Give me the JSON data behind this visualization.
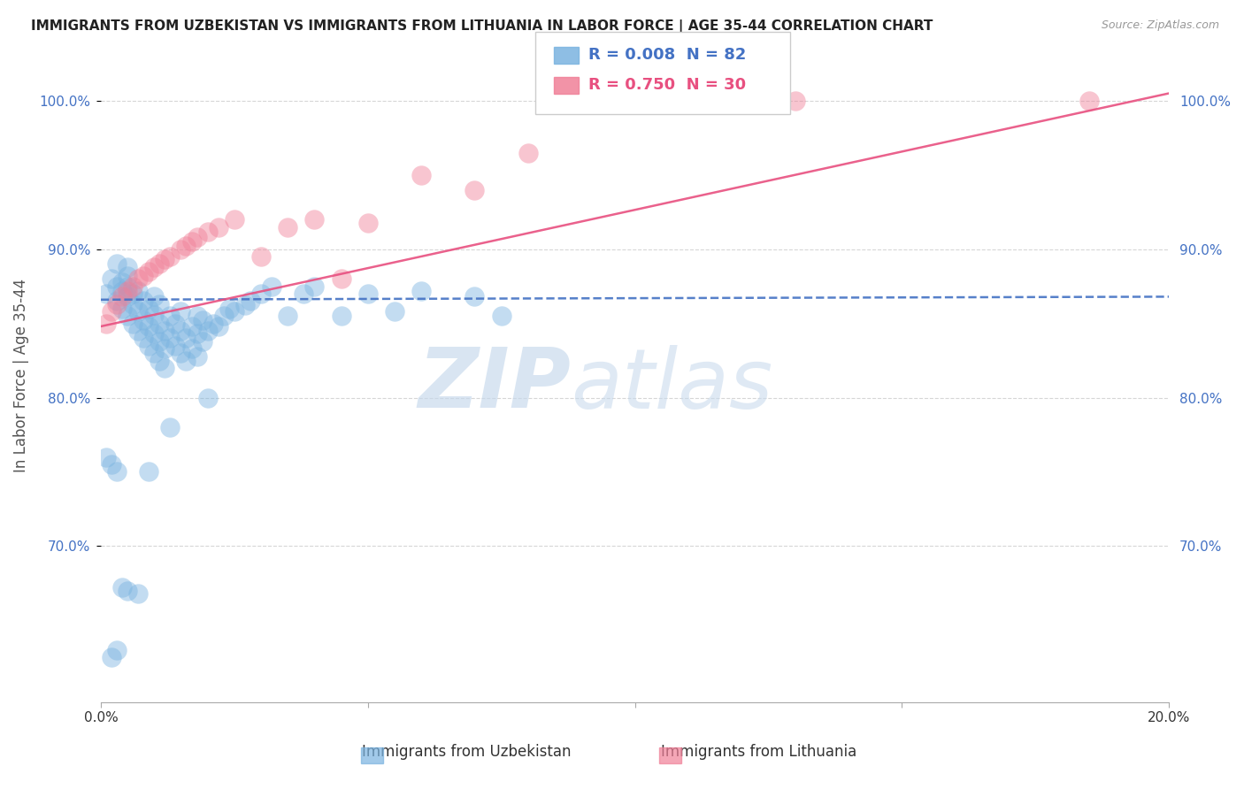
{
  "title": "IMMIGRANTS FROM UZBEKISTAN VS IMMIGRANTS FROM LITHUANIA IN LABOR FORCE | AGE 35-44 CORRELATION CHART",
  "source": "Source: ZipAtlas.com",
  "xlabel_bottom": [
    "Immigrants from Uzbekistan",
    "Immigrants from Lithuania"
  ],
  "ylabel": "In Labor Force | Age 35-44",
  "xlim": [
    0.0,
    0.2
  ],
  "ylim": [
    0.595,
    1.035
  ],
  "yticks": [
    0.7,
    0.8,
    0.9,
    1.0
  ],
  "ytick_labels": [
    "70.0%",
    "80.0%",
    "90.0%",
    "100.0%"
  ],
  "xticks": [
    0.0,
    0.05,
    0.1,
    0.15,
    0.2
  ],
  "xtick_labels": [
    "0.0%",
    "",
    "",
    "",
    "20.0%"
  ],
  "watermark_zip": "ZIP",
  "watermark_atlas": "atlas",
  "blue_color": "#7ab3e0",
  "pink_color": "#f08098",
  "blue_line_color": "#4472c4",
  "pink_line_color": "#e85080",
  "background": "#ffffff",
  "grid_color": "#cccccc",
  "title_fontsize": 11,
  "axis_label_color": "#555555",
  "tick_color": "#4472c4",
  "blue_line_y0": 0.866,
  "blue_line_y1": 0.868,
  "pink_line_y0": 0.848,
  "pink_line_y1": 1.005,
  "uz_x": [
    0.001,
    0.002,
    0.003,
    0.003,
    0.003,
    0.004,
    0.004,
    0.004,
    0.005,
    0.005,
    0.005,
    0.005,
    0.005,
    0.006,
    0.006,
    0.006,
    0.007,
    0.007,
    0.007,
    0.008,
    0.008,
    0.008,
    0.009,
    0.009,
    0.009,
    0.01,
    0.01,
    0.01,
    0.01,
    0.011,
    0.011,
    0.011,
    0.011,
    0.012,
    0.012,
    0.012,
    0.013,
    0.013,
    0.014,
    0.014,
    0.015,
    0.015,
    0.015,
    0.016,
    0.016,
    0.017,
    0.017,
    0.018,
    0.018,
    0.018,
    0.019,
    0.019,
    0.02,
    0.021,
    0.022,
    0.023,
    0.024,
    0.025,
    0.027,
    0.028,
    0.03,
    0.032,
    0.035,
    0.038,
    0.04,
    0.045,
    0.05,
    0.055,
    0.06,
    0.07,
    0.075,
    0.001,
    0.002,
    0.003,
    0.004,
    0.005,
    0.007,
    0.009,
    0.013,
    0.02,
    0.002,
    0.003
  ],
  "uz_y": [
    0.87,
    0.88,
    0.865,
    0.875,
    0.89,
    0.86,
    0.872,
    0.878,
    0.855,
    0.868,
    0.875,
    0.882,
    0.888,
    0.85,
    0.863,
    0.87,
    0.845,
    0.858,
    0.872,
    0.84,
    0.852,
    0.865,
    0.835,
    0.848,
    0.86,
    0.83,
    0.843,
    0.856,
    0.868,
    0.825,
    0.838,
    0.85,
    0.863,
    0.82,
    0.833,
    0.845,
    0.84,
    0.855,
    0.835,
    0.85,
    0.83,
    0.845,
    0.858,
    0.825,
    0.84,
    0.833,
    0.848,
    0.828,
    0.843,
    0.855,
    0.838,
    0.852,
    0.845,
    0.85,
    0.848,
    0.855,
    0.86,
    0.858,
    0.862,
    0.865,
    0.87,
    0.875,
    0.855,
    0.87,
    0.875,
    0.855,
    0.87,
    0.858,
    0.872,
    0.868,
    0.855,
    0.76,
    0.755,
    0.75,
    0.672,
    0.67,
    0.668,
    0.75,
    0.78,
    0.8,
    0.625,
    0.63
  ],
  "lt_x": [
    0.001,
    0.002,
    0.003,
    0.004,
    0.005,
    0.006,
    0.007,
    0.008,
    0.009,
    0.01,
    0.011,
    0.012,
    0.013,
    0.015,
    0.016,
    0.017,
    0.018,
    0.02,
    0.022,
    0.025,
    0.03,
    0.035,
    0.04,
    0.045,
    0.05,
    0.06,
    0.07,
    0.08,
    0.13,
    0.185
  ],
  "lt_y": [
    0.85,
    0.858,
    0.863,
    0.868,
    0.872,
    0.875,
    0.88,
    0.882,
    0.885,
    0.888,
    0.89,
    0.893,
    0.895,
    0.9,
    0.902,
    0.905,
    0.908,
    0.912,
    0.915,
    0.92,
    0.895,
    0.915,
    0.92,
    0.88,
    0.918,
    0.95,
    0.94,
    0.965,
    1.0,
    1.0
  ]
}
